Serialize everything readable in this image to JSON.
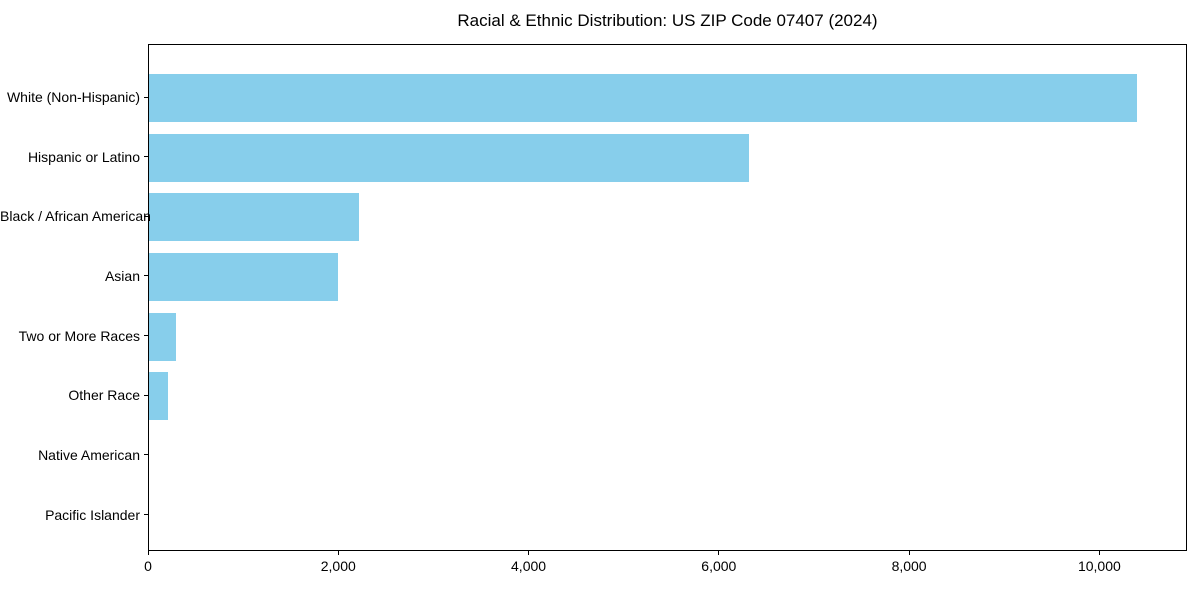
{
  "title": "Racial & Ethnic Distribution: US ZIP Code 07407 (2024)",
  "colors": {
    "bar": "#87CEEB",
    "axis": "#000000",
    "background": "#FFFFFF",
    "text": "#000000"
  },
  "chart_data": {
    "type": "bar",
    "orientation": "horizontal",
    "title": "Racial & Ethnic Distribution: US ZIP Code 07407 (2024)",
    "categories": [
      "White (Non-Hispanic)",
      "Hispanic or Latino",
      "Black / African American",
      "Asian",
      "Two or More Races",
      "Other Race",
      "Native American",
      "Pacific Islander"
    ],
    "values": [
      10380,
      6310,
      2210,
      1990,
      280,
      200,
      0,
      0
    ],
    "bar_color": "#87CEEB",
    "xlabel": "",
    "ylabel": "",
    "xlim": [
      0,
      10900
    ],
    "x_ticks": [
      0,
      2000,
      4000,
      6000,
      8000,
      10000
    ],
    "x_tick_labels": [
      "0",
      "2,000",
      "4,000",
      "6,000",
      "8,000",
      "10,000"
    ],
    "grid": false,
    "legend": null
  }
}
